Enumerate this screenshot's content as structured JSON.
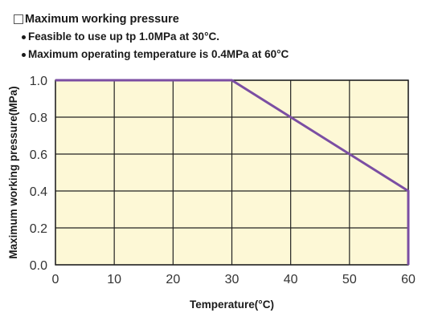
{
  "header": {
    "title": "Maximum working pressure",
    "notes": [
      "Feasible to use up tp 1.0MPa at 30°C.",
      "Maximum operating temperature is 0.4MPa at 60°C"
    ]
  },
  "colors": {
    "plot_background": "#fdf8d6",
    "line": "#7b4ea3",
    "grid": "#222222"
  },
  "chart_data": {
    "type": "line",
    "xlabel": "Temperature(°C)",
    "ylabel": "Maximum working pressure(MPa)",
    "xlim": [
      0,
      60
    ],
    "ylim": [
      0,
      1.0
    ],
    "x_ticks": [
      "0",
      "10",
      "20",
      "30",
      "40",
      "50",
      "60"
    ],
    "y_ticks": [
      "0.0",
      "0.2",
      "0.4",
      "0.6",
      "0.8",
      "1.0"
    ],
    "grid": true,
    "series": [
      {
        "x": [
          0,
          30,
          40,
          50,
          60,
          60
        ],
        "y": [
          1.0,
          1.0,
          0.8,
          0.6,
          0.4,
          0.0
        ]
      }
    ]
  }
}
